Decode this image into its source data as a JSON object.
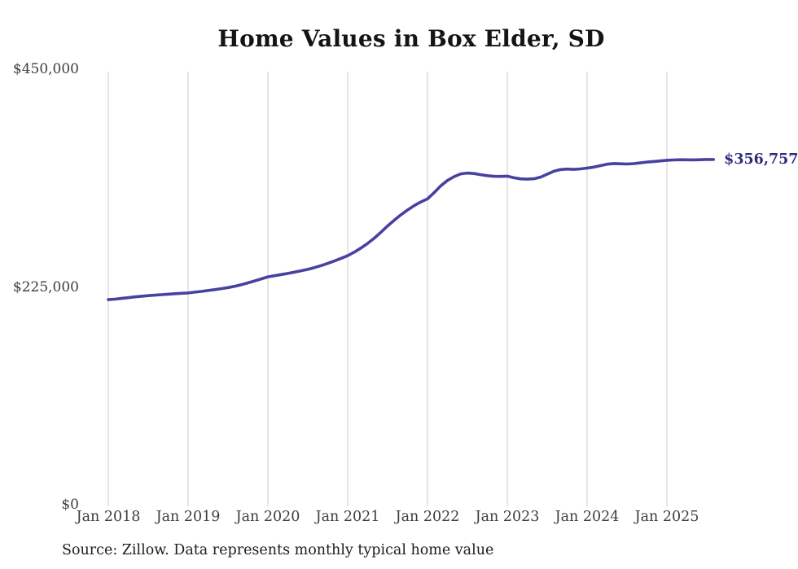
{
  "title": "Home Values in Box Elder, SD",
  "source_note": "Source: Zillow. Data represents monthly typical home value",
  "end_label": "$356,757",
  "colors": {
    "line": "#4741a0",
    "end_label": "#2d2b78",
    "gridline": "#cccccc",
    "axis_text": "#3d3d3d",
    "title_text": "#141414",
    "source_text": "#1c1c1c",
    "background": "#ffffff"
  },
  "chart_data": {
    "type": "line",
    "title": "Home Values in Box Elder, SD",
    "ylabel": "",
    "xlabel": "",
    "ylim": [
      0,
      450000
    ],
    "grid": "vertical-only",
    "legend": "none",
    "start_month": "Jan 2018",
    "frequency": "monthly",
    "last_value": 356757,
    "x_ticks": [
      "Jan 2018",
      "Jan 2019",
      "Jan 2020",
      "Jan 2021",
      "Jan 2022",
      "Jan 2023",
      "Jan 2024",
      "Jan 2025"
    ],
    "x_tick_indices": [
      0,
      12,
      24,
      36,
      48,
      60,
      72,
      84
    ],
    "y_ticks": [
      {
        "label": "$0",
        "value": 0
      },
      {
        "label": "$225,000",
        "value": 225000
      },
      {
        "label": "$450,000",
        "value": 450000
      }
    ],
    "values": [
      211900,
      212400,
      213100,
      213900,
      214700,
      215400,
      216000,
      216500,
      217000,
      217500,
      218000,
      218400,
      218800,
      219600,
      220400,
      221300,
      222200,
      223200,
      224300,
      225700,
      227300,
      229200,
      231200,
      233300,
      235400,
      236600,
      237800,
      239000,
      240300,
      241700,
      243200,
      245000,
      247000,
      249300,
      251800,
      254500,
      257300,
      261000,
      265200,
      270000,
      275500,
      281500,
      288000,
      294000,
      299500,
      304500,
      309000,
      312800,
      316000,
      322500,
      329500,
      335000,
      339000,
      341800,
      342700,
      342200,
      341000,
      340000,
      339300,
      339200,
      339500,
      337800,
      336700,
      336400,
      336800,
      338500,
      341500,
      344500,
      346300,
      346800,
      346500,
      347000,
      347800,
      348800,
      350300,
      351800,
      352500,
      352300,
      352000,
      352400,
      353200,
      354000,
      354600,
      355200,
      355900,
      356200,
      356500,
      356400,
      356300,
      356500,
      356700,
      356757
    ]
  }
}
